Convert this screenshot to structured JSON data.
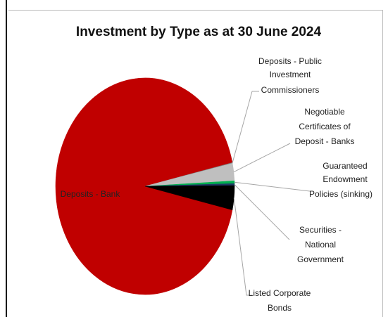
{
  "chart_data": {
    "type": "pie",
    "title": "Investment by Type as at 30 June 2024",
    "legend": "none",
    "slices": [
      {
        "name": "Deposits - Bank",
        "value": 93.0,
        "color": "#c00000"
      },
      {
        "name": "Deposits - Public Investment Commissioners",
        "value": 0.1,
        "color": "#7f7f7f"
      },
      {
        "name": "Negotiable Certificates of Deposit - Banks",
        "value": 2.6,
        "color": "#bfbfbf"
      },
      {
        "name": "Guaranteed Endowment Policies (sinking)",
        "value": 0.4,
        "color": "#00b050"
      },
      {
        "name": "Securities - National Government",
        "value": 0.3,
        "color": "#1f3864"
      },
      {
        "name": "Listed Corporate Bonds",
        "value": 3.6,
        "color": "#000000"
      }
    ],
    "labels": {
      "inner": "Deposits - Bank",
      "deposits_public": [
        "Deposits - Public",
        "Investment",
        "Commissioners"
      ],
      "ncd": [
        "Negotiable",
        "Certificates of",
        "Deposit - Banks"
      ],
      "endowment": [
        "Guaranteed",
        "Endowment",
        "Policies (sinking)"
      ],
      "securities": [
        "Securities -",
        "National",
        "Government"
      ],
      "corporate": [
        "Listed Corporate",
        "Bonds"
      ]
    }
  }
}
